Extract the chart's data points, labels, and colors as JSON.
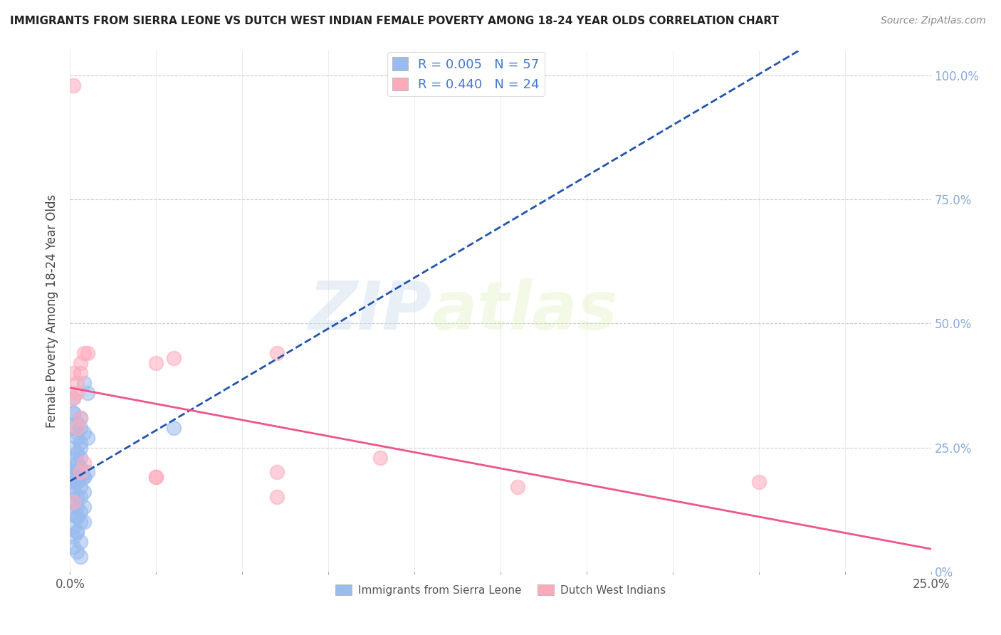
{
  "title": "IMMIGRANTS FROM SIERRA LEONE VS DUTCH WEST INDIAN FEMALE POVERTY AMONG 18-24 YEAR OLDS CORRELATION CHART",
  "source": "Source: ZipAtlas.com",
  "ylabel": "Female Poverty Among 18-24 Year Olds",
  "xlim": [
    0.0,
    0.25
  ],
  "ylim": [
    0.0,
    1.05
  ],
  "yticks": [
    0.0,
    0.25,
    0.5,
    0.75,
    1.0
  ],
  "yticklabels_right": [
    "0%",
    "25.0%",
    "50.0%",
    "75.0%",
    "100.0%"
  ],
  "xtick_left_label": "0.0%",
  "xtick_right_label": "25.0%",
  "grid_color": "#cccccc",
  "bg_color": "#ffffff",
  "watermark": "ZIP",
  "watermark2": "atlas",
  "legend_text_blue": "R = 0.005   N = 57",
  "legend_text_pink": "R = 0.440   N = 24",
  "legend_label_blue": "Immigrants from Sierra Leone",
  "legend_label_pink": "Dutch West Indians",
  "blue_dot_color": "#99bbee",
  "pink_dot_color": "#ffaabb",
  "blue_line_color": "#2255aa",
  "pink_line_color": "#ee5588",
  "blue_text_color": "#4477cc",
  "pink_text_color": "#ee5588",
  "right_axis_color": "#88aadd",
  "blue_x": [
    0.001,
    0.002,
    0.003,
    0.002,
    0.001,
    0.004,
    0.005,
    0.003,
    0.001,
    0.002,
    0.001,
    0.003,
    0.002,
    0.004,
    0.001,
    0.003,
    0.002,
    0.005,
    0.001,
    0.002,
    0.003,
    0.001,
    0.004,
    0.002,
    0.003,
    0.001,
    0.002,
    0.005,
    0.004,
    0.001,
    0.002,
    0.003,
    0.001,
    0.002,
    0.003,
    0.004,
    0.001,
    0.002,
    0.003,
    0.001,
    0.002,
    0.003,
    0.002,
    0.001,
    0.003,
    0.002,
    0.004,
    0.001,
    0.002,
    0.001,
    0.003,
    0.03,
    0.002,
    0.004,
    0.001,
    0.002,
    0.003
  ],
  "blue_y": [
    0.32,
    0.3,
    0.29,
    0.28,
    0.35,
    0.38,
    0.36,
    0.31,
    0.32,
    0.27,
    0.29,
    0.23,
    0.24,
    0.28,
    0.25,
    0.26,
    0.22,
    0.27,
    0.23,
    0.22,
    0.25,
    0.2,
    0.19,
    0.18,
    0.21,
    0.2,
    0.2,
    0.2,
    0.19,
    0.18,
    0.2,
    0.19,
    0.17,
    0.18,
    0.17,
    0.16,
    0.16,
    0.15,
    0.15,
    0.14,
    0.13,
    0.12,
    0.11,
    0.12,
    0.1,
    0.11,
    0.13,
    0.09,
    0.08,
    0.07,
    0.06,
    0.29,
    0.08,
    0.1,
    0.05,
    0.04,
    0.03
  ],
  "pink_x": [
    0.001,
    0.002,
    0.003,
    0.001,
    0.004,
    0.003,
    0.002,
    0.005,
    0.002,
    0.003,
    0.004,
    0.003,
    0.025,
    0.03,
    0.06,
    0.025,
    0.09,
    0.06,
    0.2,
    0.001,
    0.001,
    0.13,
    0.06,
    0.025
  ],
  "pink_y": [
    0.4,
    0.38,
    0.42,
    0.35,
    0.44,
    0.4,
    0.36,
    0.44,
    0.29,
    0.31,
    0.22,
    0.2,
    0.42,
    0.43,
    0.44,
    0.19,
    0.23,
    0.2,
    0.18,
    0.98,
    0.14,
    0.17,
    0.15,
    0.19
  ]
}
